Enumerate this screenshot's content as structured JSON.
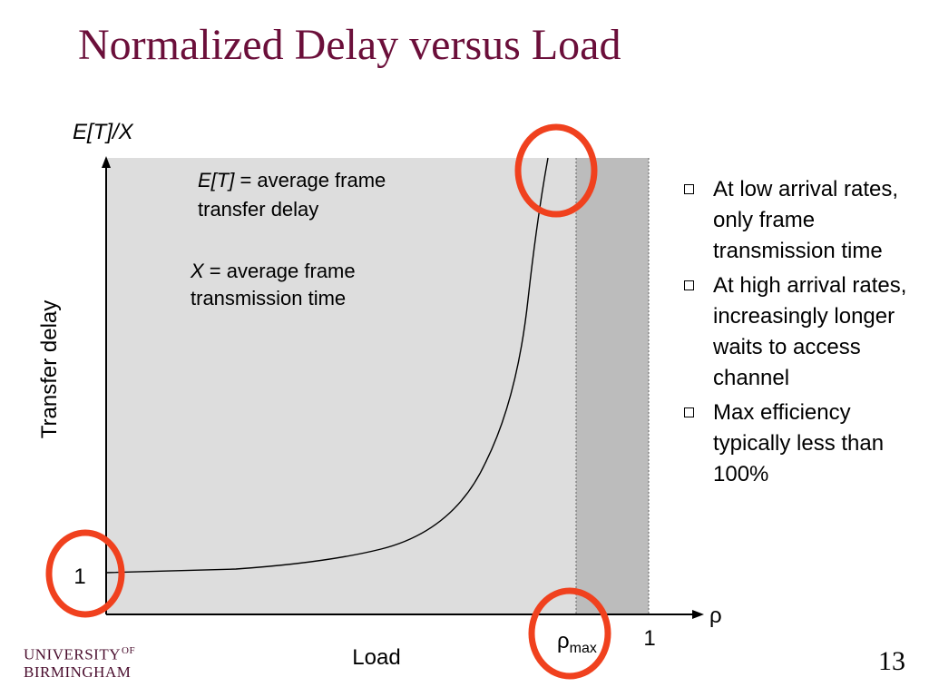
{
  "slide": {
    "title": "Normalized Delay versus Load",
    "page_number": "13"
  },
  "diagram": {
    "y_axis_label": "E[T]/X",
    "y_axis_title": "Transfer delay",
    "x_axis_symbol": "ρ",
    "x_axis_title": "Load",
    "y_tick_label": "1",
    "x_tick_label": "1",
    "rho_max": {
      "base": "ρ",
      "subscript": "max"
    },
    "definitions": [
      {
        "symbol": "E[T]",
        "equals": " = ",
        "text_line1": "average frame",
        "text_line2": "transfer delay"
      },
      {
        "symbol": "X",
        "equals": " = ",
        "text_line1": "average frame",
        "text_line2": "transmission time"
      }
    ],
    "colors": {
      "plot_bg": "#dddddd",
      "saturation_band": "#bcbcbc",
      "highlight_circle": "#f0411e"
    }
  },
  "bullets": [
    {
      "text": "At low arrival rates, only frame transmission time"
    },
    {
      "text": "At high arrival rates, increasingly longer waits to access channel"
    },
    {
      "text": "Max efficiency typically less than 100%"
    }
  ],
  "footer": {
    "logo_line1": "UNIVERSITY",
    "logo_of": "OF",
    "logo_line2": "BIRMINGHAM"
  }
}
